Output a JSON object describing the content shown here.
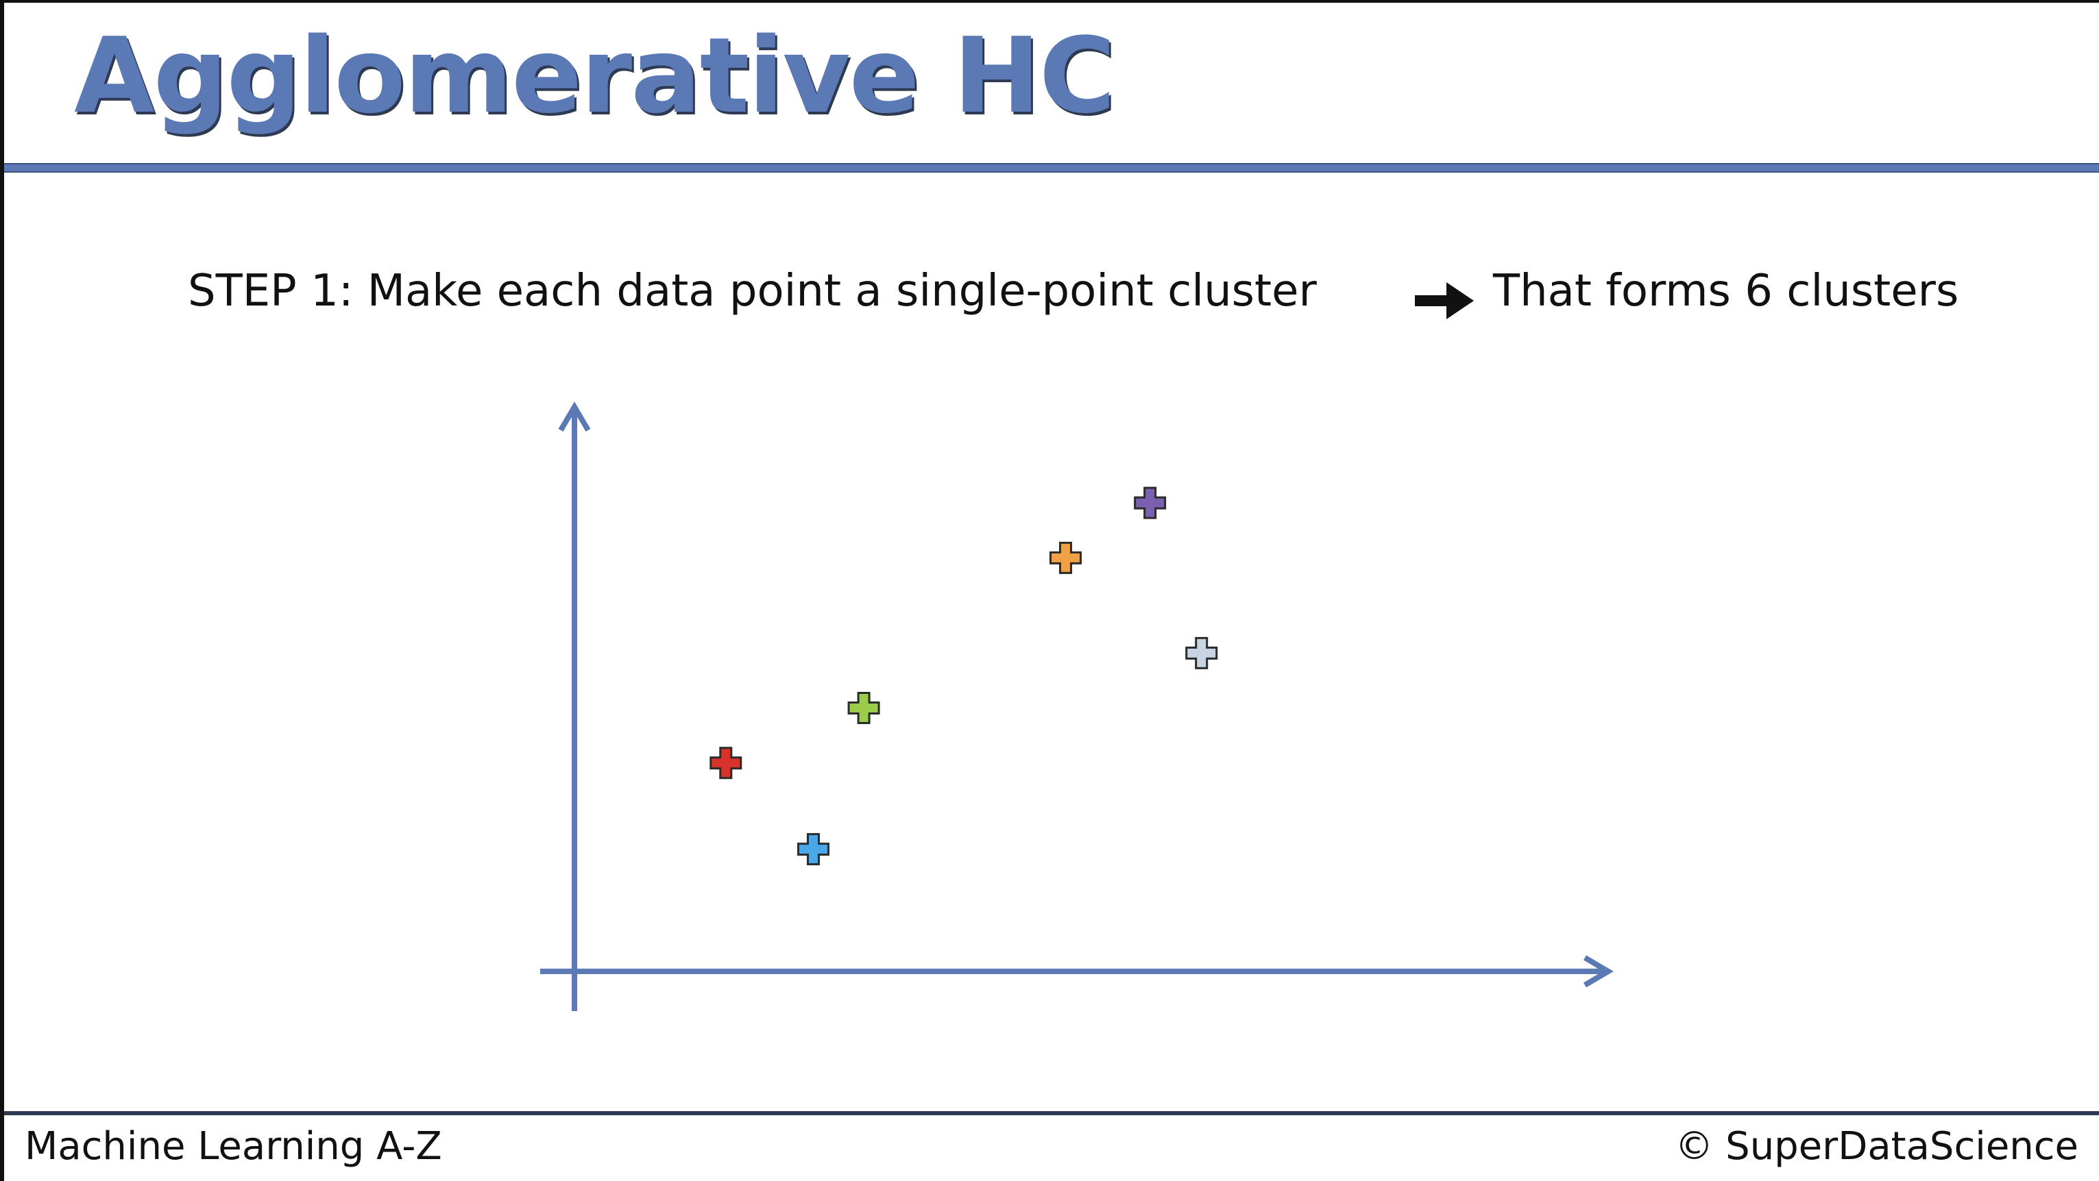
{
  "slide": {
    "title": "Agglomerative HC",
    "step_label": "STEP 1",
    "step_separator": ":",
    "step_text": " Make each data point a single-point cluster",
    "result_text": "That forms 6 clusters",
    "footer_left": "Machine Learning A-Z",
    "footer_right": "© SuperDataScience"
  },
  "colors": {
    "title": "#5b79b5",
    "axis": "#5b79b5",
    "rule": "#5b79b5",
    "arrow": "#111111"
  },
  "icons": {
    "step_arrow": "right-arrow-icon",
    "point_marker": "plus-marker-icon"
  },
  "chart_data": {
    "type": "scatter",
    "title": "",
    "xlabel": "",
    "ylabel": "",
    "xlim": [
      0,
      100
    ],
    "ylim": [
      0,
      100
    ],
    "grid": false,
    "legend": "none",
    "axis_arrows": true,
    "points": [
      {
        "x": 14.7,
        "y": 37.2,
        "color": "#d9322b"
      },
      {
        "x": 23.2,
        "y": 21.8,
        "color": "#4aa8e8"
      },
      {
        "x": 28.1,
        "y": 47.0,
        "color": "#9ccc4c"
      },
      {
        "x": 47.7,
        "y": 73.8,
        "color": "#f0a045"
      },
      {
        "x": 55.9,
        "y": 83.6,
        "color": "#7b5fb0"
      },
      {
        "x": 60.9,
        "y": 56.8,
        "color": "#c8d4e2"
      }
    ]
  }
}
